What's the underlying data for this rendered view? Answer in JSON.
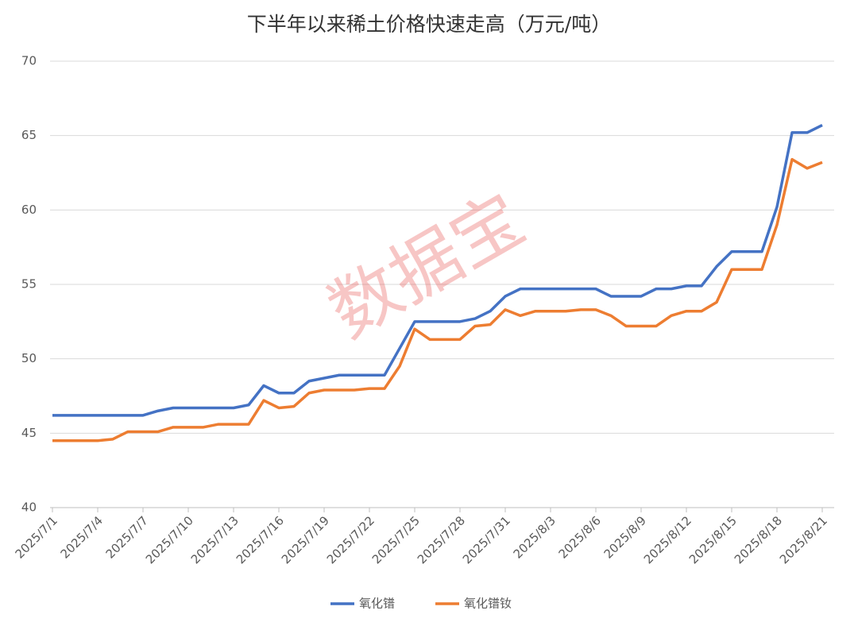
{
  "chart_data": {
    "type": "line",
    "title": "下半年以来稀土价格快速走高（万元/吨）",
    "watermark": "数据宝",
    "categories": [
      "2025/7/1",
      null,
      null,
      "2025/7/4",
      null,
      null,
      "2025/7/7",
      null,
      null,
      "2025/7/10",
      null,
      null,
      "2025/7/13",
      null,
      null,
      "2025/7/16",
      null,
      null,
      "2025/7/19",
      null,
      null,
      "2025/7/22",
      null,
      null,
      "2025/7/25",
      null,
      null,
      "2025/7/28",
      null,
      null,
      "2025/7/31",
      null,
      null,
      "2025/8/3",
      null,
      null,
      "2025/8/6",
      null,
      null,
      "2025/8/9",
      null,
      null,
      "2025/8/12",
      null,
      null,
      "2025/8/15",
      null,
      null,
      "2025/8/18",
      null,
      null,
      "2025/8/21"
    ],
    "series": [
      {
        "name": "氧化镨",
        "color": "#4472c4",
        "values": [
          46.2,
          46.2,
          46.2,
          46.2,
          46.2,
          46.2,
          46.2,
          46.5,
          46.7,
          46.7,
          46.7,
          46.7,
          46.7,
          46.9,
          48.2,
          47.7,
          47.7,
          48.5,
          48.7,
          48.9,
          48.9,
          48.9,
          48.9,
          50.7,
          52.5,
          52.5,
          52.5,
          52.5,
          52.7,
          53.2,
          54.2,
          54.7,
          54.7,
          54.7,
          54.7,
          54.7,
          54.7,
          54.2,
          54.2,
          54.2,
          54.7,
          54.7,
          54.9,
          54.9,
          56.2,
          57.2,
          57.2,
          57.2,
          60.2,
          65.2,
          65.2,
          65.7
        ]
      },
      {
        "name": "氧化镨钕",
        "color": "#ed7d31",
        "values": [
          44.5,
          44.5,
          44.5,
          44.5,
          44.6,
          45.1,
          45.1,
          45.1,
          45.4,
          45.4,
          45.4,
          45.6,
          45.6,
          45.6,
          47.2,
          46.7,
          46.8,
          47.7,
          47.9,
          47.9,
          47.9,
          48.0,
          48.0,
          49.5,
          52.0,
          51.3,
          51.3,
          51.3,
          52.2,
          52.3,
          53.3,
          52.9,
          53.2,
          53.2,
          53.2,
          53.3,
          53.3,
          52.9,
          52.2,
          52.2,
          52.2,
          52.9,
          53.2,
          53.2,
          53.8,
          56.0,
          56.0,
          56.0,
          59.0,
          63.4,
          62.8,
          63.2
        ]
      }
    ],
    "ylim": [
      40,
      70
    ],
    "yticks": [
      40,
      45,
      50,
      55,
      60,
      65,
      70
    ],
    "grid": true,
    "legend": "bottom"
  }
}
